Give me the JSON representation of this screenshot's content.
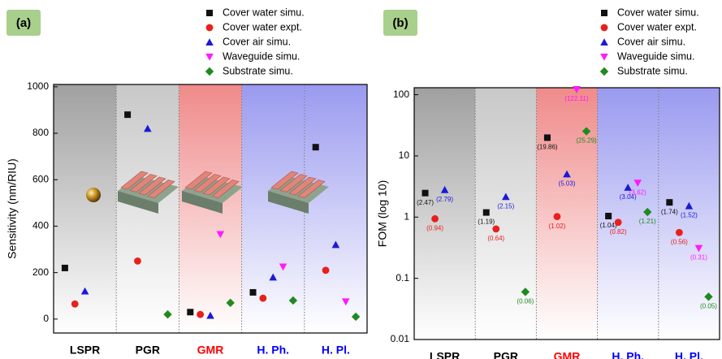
{
  "chart_data": [
    {
      "type": "scatter",
      "panel_label": "(a)",
      "y_label": "Sensitivity (nm/RIU)",
      "categories": [
        "LSPR",
        "PGR",
        "GMR",
        "H. Ph.",
        "H. Pl."
      ],
      "category_colors": [
        "#000000",
        "#000000",
        "#ff0000",
        "#0000ff",
        "#0000ff"
      ],
      "band_colors": [
        "#a0a0a0",
        "#c8c8c8",
        "#f08a8a",
        "#9a9af0",
        "#9a9af0"
      ],
      "ylim": [
        -60,
        1010
      ],
      "yticks": [
        0,
        200,
        400,
        600,
        800,
        1000
      ],
      "series": [
        {
          "name": "Cover water simu.",
          "color": "#111111",
          "marker": "square",
          "values": [
            220,
            880,
            30,
            115,
            740
          ]
        },
        {
          "name": "Cover water expt.",
          "color": "#e8201c",
          "marker": "circle",
          "values": [
            65,
            250,
            20,
            90,
            210
          ]
        },
        {
          "name": "Cover air simu.",
          "color": "#1a1ad8",
          "marker": "triangle-up",
          "values": [
            120,
            820,
            15,
            180,
            320
          ]
        },
        {
          "name": "Waveguide simu.",
          "color": "#ff1aff",
          "marker": "triangle-down",
          "values": [
            null,
            null,
            365,
            225,
            75
          ]
        },
        {
          "name": "Substrate simu.",
          "color": "#1f8a1f",
          "marker": "diamond",
          "values": [
            null,
            20,
            70,
            80,
            10
          ]
        }
      ]
    },
    {
      "type": "scatter",
      "panel_label": "(b)",
      "y_label": "FOM (log 10)",
      "yscale": "log",
      "categories": [
        "LSPR",
        "PGR",
        "GMR",
        "H. Ph.",
        "H. Pl."
      ],
      "category_colors": [
        "#000000",
        "#000000",
        "#ff0000",
        "#0000ff",
        "#0000ff"
      ],
      "band_colors": [
        "#a0a0a0",
        "#c8c8c8",
        "#f08a8a",
        "#9a9af0",
        "#9a9af0"
      ],
      "ylim": [
        0.01,
        130
      ],
      "yticks": [
        0.01,
        0.1,
        1,
        10,
        100
      ],
      "series": [
        {
          "name": "Cover water simu.",
          "color": "#111111",
          "marker": "square",
          "values": [
            2.47,
            1.19,
            19.86,
            1.04,
            1.74
          ],
          "value_labels": [
            "(2.47)",
            "(1.19)",
            "(19.86)",
            "(1.04)",
            "(1.74)"
          ]
        },
        {
          "name": "Cover water expt.",
          "color": "#e8201c",
          "marker": "circle",
          "values": [
            0.94,
            0.64,
            1.02,
            0.82,
            0.56
          ],
          "value_labels": [
            "(0.94)",
            "(0.64)",
            "(1.02)",
            "(0.82)",
            "(0.56)"
          ]
        },
        {
          "name": "Cover air simu.",
          "color": "#1a1ad8",
          "marker": "triangle-up",
          "values": [
            2.79,
            2.15,
            5.03,
            3.04,
            1.52
          ],
          "value_labels": [
            "(2.79)",
            "(2.15)",
            "(5.03)",
            "(3.04)",
            "(1.52)"
          ]
        },
        {
          "name": "Waveguide simu.",
          "color": "#ff1aff",
          "marker": "triangle-down",
          "values": [
            null,
            null,
            122.11,
            3.62,
            0.31
          ],
          "value_labels": [
            null,
            null,
            "(122.11)",
            "(3.62)",
            "(0.31)"
          ]
        },
        {
          "name": "Substrate simu.",
          "color": "#1f8a1f",
          "marker": "diamond",
          "values": [
            null,
            0.06,
            25.29,
            1.21,
            0.05
          ],
          "value_labels": [
            null,
            "(0.06)",
            "(25.29)",
            "(1.21)",
            "(0.05)"
          ]
        }
      ]
    }
  ]
}
